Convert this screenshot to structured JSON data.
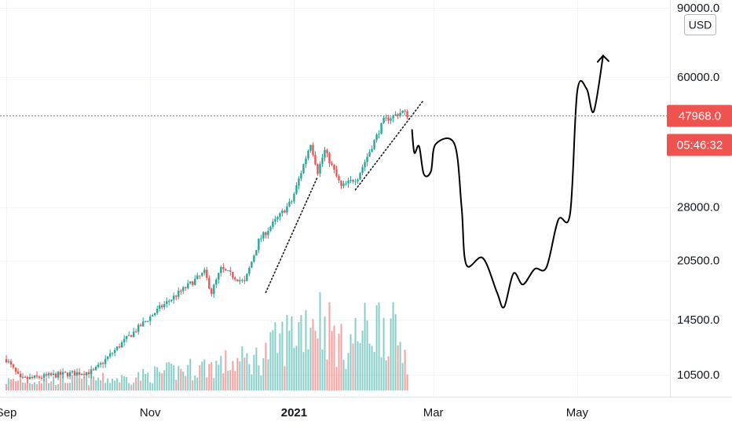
{
  "chart_data": {
    "type": "candlestick",
    "title": "",
    "xlabel": "",
    "ylabel": "",
    "currency": "USD",
    "y_scale": "log",
    "ylim": [
      9000,
      92000
    ],
    "y_ticks": [
      {
        "value": 90000,
        "label": "90000.0"
      },
      {
        "value": 60000,
        "label": "60000.0"
      },
      {
        "value": 28000,
        "label": "28000.0"
      },
      {
        "value": 20500,
        "label": "20500.0"
      },
      {
        "value": 14500,
        "label": "14500.0"
      },
      {
        "value": 10500,
        "label": "10500.0"
      }
    ],
    "x_ticks": [
      {
        "date": "2020-09-01",
        "label": "Sep",
        "bold": false
      },
      {
        "date": "2020-11-01",
        "label": "Nov",
        "bold": false
      },
      {
        "date": "2021-01-01",
        "label": "2021",
        "bold": true
      },
      {
        "date": "2021-03-01",
        "label": "Mar",
        "bold": false
      },
      {
        "date": "2021-05-01",
        "label": "May",
        "bold": false
      }
    ],
    "x_range": [
      "2020-09-01",
      "2021-06-05"
    ],
    "last_price": {
      "value": 47968,
      "label": "47968.0",
      "countdown": "05:46:32"
    },
    "colors": {
      "up": "#26a69a",
      "down": "#ef5350",
      "price_line": "#ef5350",
      "annotation": "#000000"
    },
    "price_anchors": [
      {
        "date": "2020-09-01",
        "close": 11500
      },
      {
        "date": "2020-09-07",
        "close": 10200
      },
      {
        "date": "2020-09-23",
        "close": 10500
      },
      {
        "date": "2020-10-08",
        "close": 10700
      },
      {
        "date": "2020-10-21",
        "close": 12800
      },
      {
        "date": "2020-11-05",
        "close": 15500
      },
      {
        "date": "2020-11-24",
        "close": 19100
      },
      {
        "date": "2020-11-27",
        "close": 17000
      },
      {
        "date": "2020-12-01",
        "close": 19500
      },
      {
        "date": "2020-12-11",
        "close": 18000
      },
      {
        "date": "2020-12-17",
        "close": 23000
      },
      {
        "date": "2020-12-31",
        "close": 29000
      },
      {
        "date": "2021-01-08",
        "close": 40800
      },
      {
        "date": "2021-01-11",
        "close": 34500
      },
      {
        "date": "2021-01-14",
        "close": 39000
      },
      {
        "date": "2021-01-21",
        "close": 31500
      },
      {
        "date": "2021-01-28",
        "close": 33400
      },
      {
        "date": "2021-02-08",
        "close": 46500
      },
      {
        "date": "2021-02-16",
        "close": 49000
      },
      {
        "date": "2021-02-18",
        "close": 48000
      }
    ],
    "volume_anchors": [
      {
        "date": "2020-09-01",
        "rel": 0.12
      },
      {
        "date": "2020-10-21",
        "rel": 0.15
      },
      {
        "date": "2020-11-24",
        "rel": 0.3
      },
      {
        "date": "2020-12-17",
        "rel": 0.4
      },
      {
        "date": "2021-01-11",
        "rel": 1.0
      },
      {
        "date": "2021-01-21",
        "rel": 0.55
      },
      {
        "date": "2021-02-08",
        "rel": 0.9
      },
      {
        "date": "2021-02-18",
        "rel": 0.45
      }
    ],
    "forecast_path": [
      {
        "date": "2021-02-20",
        "value": 44000
      },
      {
        "date": "2021-02-21",
        "value": 38500
      },
      {
        "date": "2021-02-23",
        "value": 40000
      },
      {
        "date": "2021-02-25",
        "value": 34000
      },
      {
        "date": "2021-02-28",
        "value": 34500
      },
      {
        "date": "2021-03-02",
        "value": 40500
      },
      {
        "date": "2021-03-10",
        "value": 40500
      },
      {
        "date": "2021-03-13",
        "value": 28000
      },
      {
        "date": "2021-03-15",
        "value": 20000
      },
      {
        "date": "2021-03-22",
        "value": 20800
      },
      {
        "date": "2021-03-28",
        "value": 17000
      },
      {
        "date": "2021-03-31",
        "value": 15600
      },
      {
        "date": "2021-04-04",
        "value": 19000
      },
      {
        "date": "2021-04-08",
        "value": 17800
      },
      {
        "date": "2021-04-13",
        "value": 19500
      },
      {
        "date": "2021-04-18",
        "value": 19700
      },
      {
        "date": "2021-04-23",
        "value": 26000
      },
      {
        "date": "2021-04-28",
        "value": 27000
      },
      {
        "date": "2021-05-01",
        "value": 55000
      },
      {
        "date": "2021-05-05",
        "value": 56000
      },
      {
        "date": "2021-05-08",
        "value": 49000
      },
      {
        "date": "2021-05-12",
        "value": 68000
      }
    ],
    "trendlines": [
      {
        "style": "dotted",
        "from": {
          "date": "2020-12-20",
          "value": 17000
        },
        "to": {
          "date": "2021-01-11",
          "value": 33500
        }
      },
      {
        "style": "dotted",
        "from": {
          "date": "2021-01-27",
          "value": 31000
        },
        "to": {
          "date": "2021-02-25",
          "value": 52500
        }
      }
    ]
  }
}
